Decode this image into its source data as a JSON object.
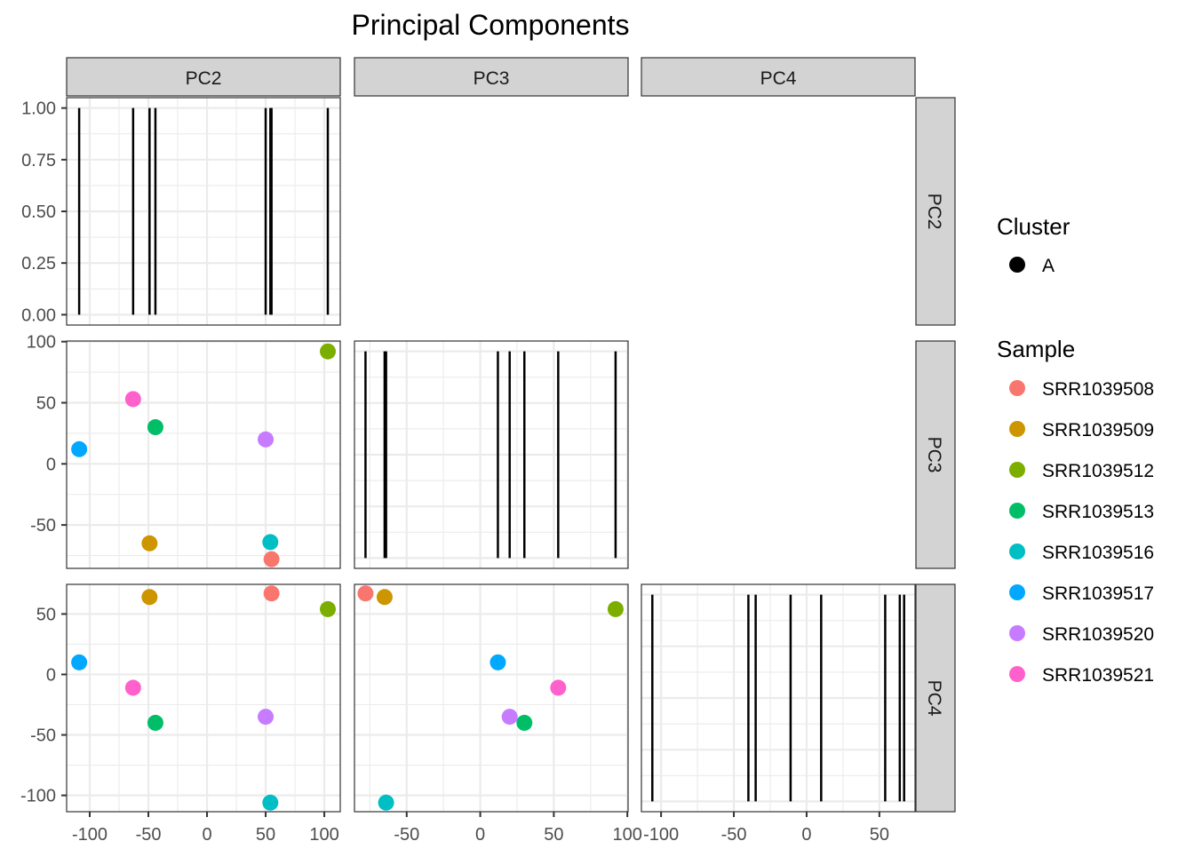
{
  "chart_data": {
    "type": "scatter",
    "title": "Principal Components",
    "variables": [
      "PC2",
      "PC3",
      "PC4"
    ],
    "axis_ranges": {
      "PC2": [
        -119.7,
        113.6
      ],
      "PC3": [
        -85.5,
        100.5
      ],
      "PC4": [
        -113.5,
        74.5
      ],
      "density": [
        -0.05,
        1.05
      ]
    },
    "x_ticks": {
      "PC2": [
        -100,
        -50,
        0,
        50,
        100
      ],
      "PC3": [
        -50,
        0,
        50,
        100
      ],
      "PC4": [
        -100,
        -50,
        0,
        50
      ]
    },
    "y_ticks": {
      "PC2": [
        "0.00",
        "0.25",
        "0.50",
        "0.75",
        "1.00"
      ],
      "PC3": [
        -50,
        0,
        50,
        100
      ],
      "PC4": [
        -100,
        -50,
        0,
        50
      ]
    },
    "grid": true,
    "legend_position": "right",
    "legend": {
      "cluster_title": "Cluster",
      "cluster_items": [
        {
          "label": "A",
          "color": "#000000"
        }
      ],
      "sample_title": "Sample"
    },
    "samples": [
      {
        "name": "SRR1039508",
        "color": "#F8766D",
        "PC2": 55,
        "PC3": -78,
        "PC4": 67
      },
      {
        "name": "SRR1039509",
        "color": "#CD9600",
        "PC2": -49,
        "PC3": -65,
        "PC4": 64
      },
      {
        "name": "SRR1039512",
        "color": "#7CAE00",
        "PC2": 103,
        "PC3": 92,
        "PC4": 54
      },
      {
        "name": "SRR1039513",
        "color": "#00BE67",
        "PC2": -44,
        "PC3": 30,
        "PC4": -40
      },
      {
        "name": "SRR1039516",
        "color": "#00BFC4",
        "PC2": 54,
        "PC3": -64,
        "PC4": -106
      },
      {
        "name": "SRR1039517",
        "color": "#00A9FF",
        "PC2": -109,
        "PC3": 12,
        "PC4": 10
      },
      {
        "name": "SRR1039520",
        "color": "#C77CFF",
        "PC2": 50,
        "PC3": 20,
        "PC4": -35
      },
      {
        "name": "SRR1039521",
        "color": "#FF61CC",
        "PC2": -63,
        "PC3": 53,
        "PC4": -11
      }
    ]
  }
}
